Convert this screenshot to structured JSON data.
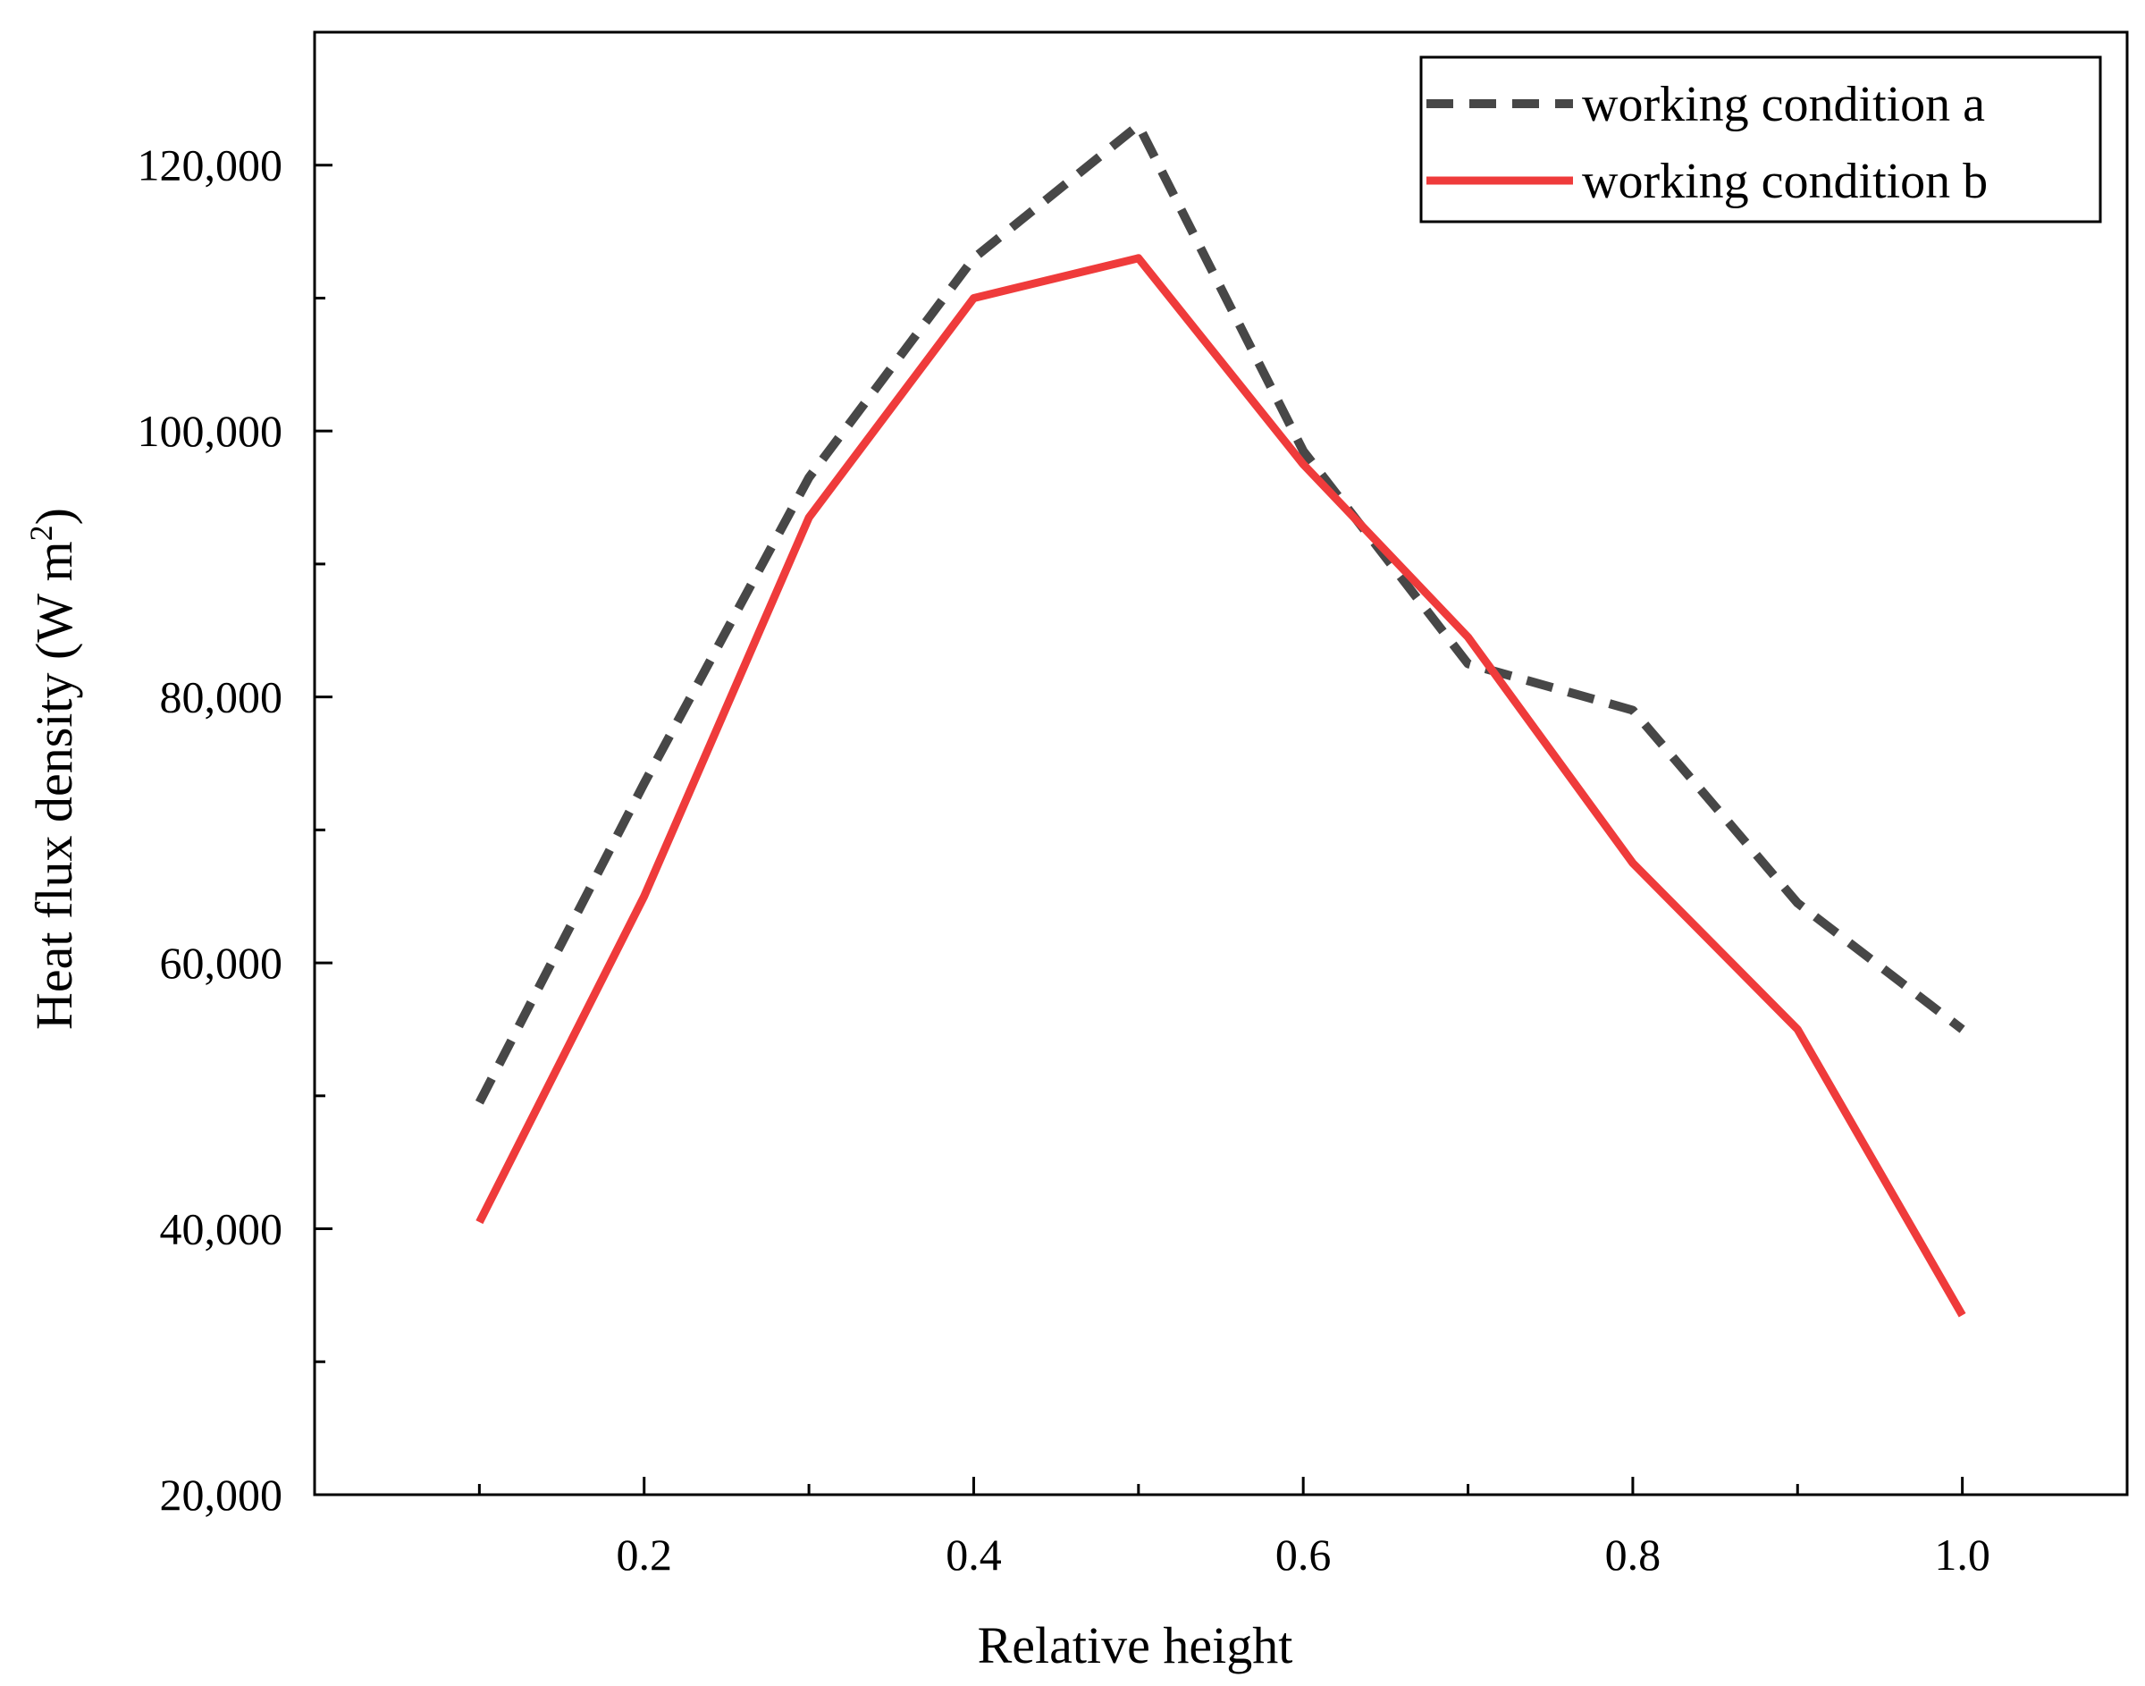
{
  "chart_data": {
    "type": "line",
    "title": "",
    "xlabel": "Relative height",
    "ylabel": "Heat flux density (W m",
    "ylabel_sup": "2",
    "ylabel_close": ")",
    "xlim": [
      0.0,
      1.1
    ],
    "ylim": [
      20000,
      130000
    ],
    "x_ticks": [
      0.2,
      0.4,
      0.6,
      0.8,
      1.0
    ],
    "x_minor_ticks": [
      0.1,
      0.3,
      0.5,
      0.7,
      0.9
    ],
    "x_tick_labels": [
      "0.2",
      "0.4",
      "0.6",
      "0.8",
      "1.0"
    ],
    "y_ticks": [
      20000,
      40000,
      60000,
      80000,
      100000,
      120000
    ],
    "y_minor_ticks": [
      30000,
      50000,
      70000,
      90000,
      110000
    ],
    "y_tick_labels": [
      "20,000",
      "40,000",
      "60,000",
      "80,000",
      "100,000",
      "120,000"
    ],
    "grid": false,
    "legend_position": "top-right",
    "x": [
      0.1,
      0.2,
      0.3,
      0.4,
      0.5,
      0.6,
      0.7,
      0.8,
      0.9,
      1.0
    ],
    "series": [
      {
        "name": "working condition a",
        "style": "dashed",
        "color": "#474747",
        "values": [
          49500,
          73500,
          96500,
          113000,
          123000,
          98500,
          82500,
          79000,
          64500,
          55000
        ]
      },
      {
        "name": "working condition b",
        "style": "solid",
        "color": "#ef3b3b",
        "values": [
          40500,
          65000,
          93500,
          110000,
          113000,
          97500,
          84500,
          67500,
          55000,
          33500
        ]
      }
    ]
  }
}
